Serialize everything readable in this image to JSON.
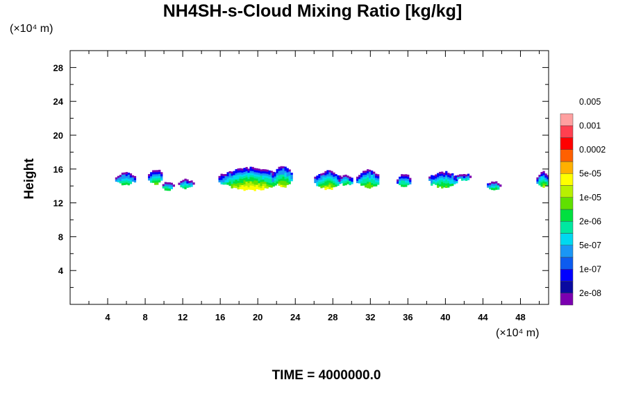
{
  "chart_data": {
    "type": "heatmap",
    "title": "NH4SH-s-Cloud Mixing Ratio [kg/kg]",
    "ylabel": "Height",
    "y_unit": "(×10⁴ m)",
    "x_unit": "(×10⁴ m)",
    "xlim": [
      0,
      51
    ],
    "ylim": [
      0,
      30
    ],
    "x_ticks": [
      4,
      8,
      12,
      16,
      20,
      24,
      28,
      32,
      36,
      40,
      44,
      48
    ],
    "y_ticks": [
      4,
      8,
      12,
      16,
      20,
      24,
      28
    ],
    "time_label": "TIME = 4000000.0",
    "colorbar": {
      "colors": [
        "#7b00b0",
        "#0a0aa0",
        "#0000ff",
        "#0c5cf0",
        "#1a96f5",
        "#00d8f0",
        "#00e8a0",
        "#00e040",
        "#60e000",
        "#b8f000",
        "#ffff00",
        "#ffb000",
        "#ff6000",
        "#ff0000",
        "#ff4050",
        "#ffa0a0"
      ],
      "labels": [
        "2e-08",
        "1e-07",
        "5e-07",
        "2e-06",
        "1e-05",
        "5e-05",
        "0.0002",
        "0.001",
        "0.005"
      ]
    },
    "clouds": [
      {
        "x0": 4.8,
        "x1": 6.8,
        "top": 15.7,
        "base": 14.2,
        "peak": 0.35
      },
      {
        "x0": 8.3,
        "x1": 9.8,
        "top": 16.1,
        "base": 14.3,
        "peak": 0.5
      },
      {
        "x0": 9.6,
        "x1": 11.0,
        "top": 14.6,
        "base": 13.6,
        "peak": 0.45
      },
      {
        "x0": 11.5,
        "x1": 13.1,
        "top": 14.9,
        "base": 13.8,
        "peak": 0.4
      },
      {
        "x0": 15.8,
        "x1": 22.6,
        "top": 16.3,
        "base": 13.6,
        "peak": 0.9
      },
      {
        "x0": 21.5,
        "x1": 23.6,
        "top": 16.4,
        "base": 14.0,
        "peak": 0.7
      },
      {
        "x0": 26.0,
        "x1": 28.8,
        "top": 15.9,
        "base": 13.7,
        "peak": 0.7
      },
      {
        "x0": 28.6,
        "x1": 30.0,
        "top": 15.4,
        "base": 14.2,
        "peak": 0.5
      },
      {
        "x0": 30.5,
        "x1": 32.9,
        "top": 16.0,
        "base": 13.9,
        "peak": 0.6
      },
      {
        "x0": 34.8,
        "x1": 36.2,
        "top": 15.6,
        "base": 13.9,
        "peak": 0.5
      },
      {
        "x0": 38.2,
        "x1": 41.2,
        "top": 15.8,
        "base": 13.9,
        "peak": 0.5
      },
      {
        "x0": 41.0,
        "x1": 42.8,
        "top": 15.6,
        "base": 14.8,
        "peak": 0.2
      },
      {
        "x0": 44.2,
        "x1": 45.9,
        "top": 14.6,
        "base": 13.7,
        "peak": 0.4
      },
      {
        "x0": 49.7,
        "x1": 51.0,
        "top": 15.8,
        "base": 13.9,
        "peak": 0.6
      }
    ]
  }
}
